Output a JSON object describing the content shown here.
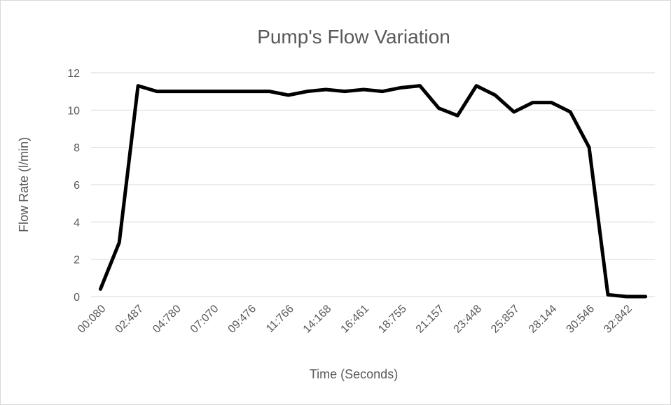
{
  "chart_data": {
    "type": "line",
    "title": "Pump's Flow Variation",
    "x_label": "Time (Seconds)",
    "y_label": "Flow Rate (l/min)",
    "categories": [
      "00:080",
      null,
      "02:487",
      null,
      "04:780",
      null,
      "07:070",
      null,
      "09:476",
      null,
      "11:766",
      null,
      "14:168",
      null,
      "16:461",
      null,
      "18:755",
      null,
      "21:157",
      null,
      "23:448",
      null,
      "25:857",
      null,
      "28:144",
      null,
      "30:546",
      null,
      "32:842",
      null
    ],
    "series": [
      {
        "name": "Flow Rate",
        "color": "#000000",
        "values": [
          0.4,
          2.9,
          11.3,
          11.0,
          11.0,
          11.0,
          11.0,
          11.0,
          11.0,
          11.0,
          10.8,
          11.0,
          11.1,
          11.0,
          11.1,
          11.0,
          11.2,
          11.3,
          10.1,
          9.7,
          11.3,
          10.8,
          9.9,
          10.4,
          10.4,
          9.9,
          8.0,
          0.1,
          0.0,
          0.0
        ]
      }
    ],
    "ylim": [
      0,
      12
    ],
    "yticks": [
      0,
      2,
      4,
      6,
      8,
      10,
      12
    ],
    "grid": true
  }
}
